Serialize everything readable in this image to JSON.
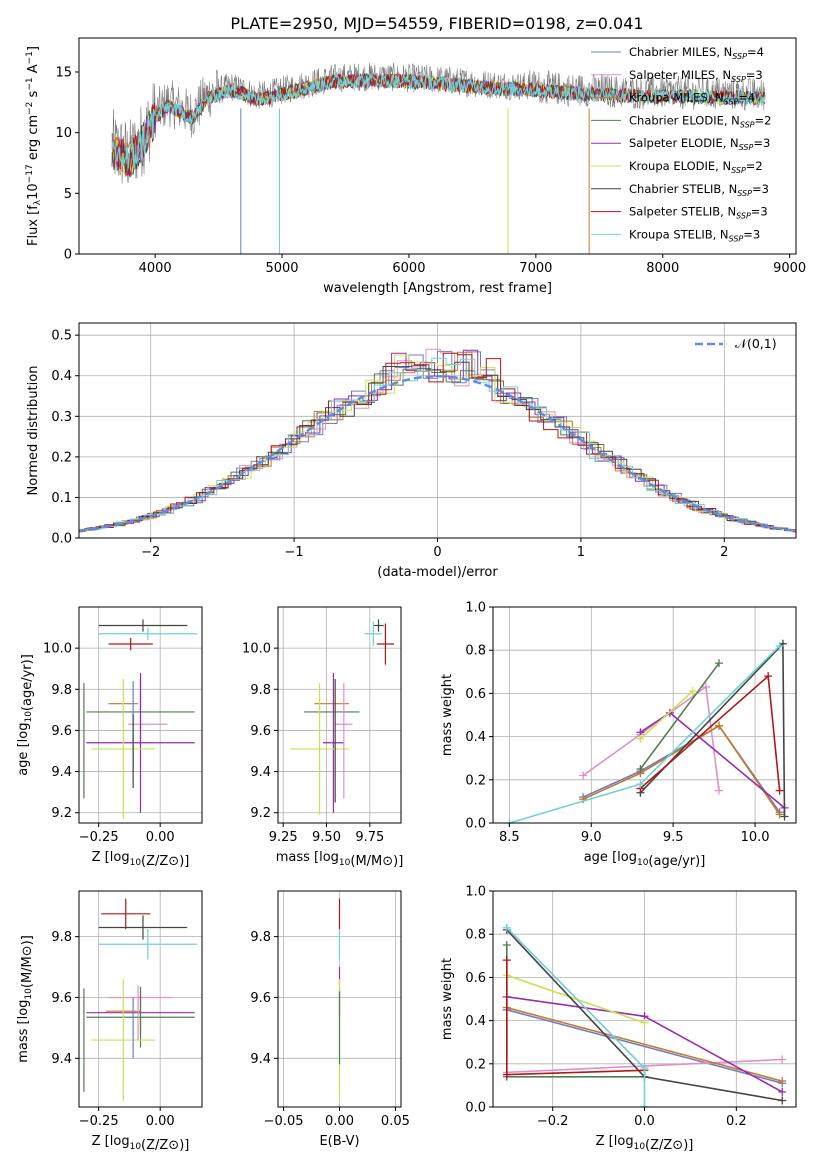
{
  "title": "PLATE=2950, MJD=54559, FIBERID=0198, z=0.041",
  "colors": {
    "Chabrier MILES": "#6b7fc8",
    "Salpeter MILES": "#e090c8",
    "Kroupa MILES": "#c87828",
    "Chabrier ELODIE": "#4f7f4f",
    "Salpeter ELODIE": "#9a2ab0",
    "Kroupa ELODIE": "#cce050",
    "Chabrier STELIB": "#444444",
    "Salpeter STELIB": "#b01818",
    "Kroupa STELIB": "#70d0d8"
  },
  "chart_data": [
    {
      "id": "spectrum",
      "type": "line",
      "xlabel": "wavelength [Angstrom, rest frame]",
      "ylabel": "Flux [f",
      "ylabel_parts": [
        "Flux [f",
        "λ",
        "10",
        "−17",
        " erg cm",
        "−2",
        " s",
        "−1",
        " A",
        "−1",
        "]"
      ],
      "xlim": [
        3400,
        9050
      ],
      "ylim": [
        0,
        17.8
      ],
      "xticks": [
        4000,
        5000,
        6000,
        7000,
        8000,
        9000
      ],
      "yticks": [
        0,
        5,
        10,
        15
      ],
      "grid": false,
      "legend_position": "upper-right",
      "legend": [
        {
          "label": "Chabrier MILES, N",
          "sub": "SSP",
          "suffix": "=4",
          "key": "Chabrier MILES"
        },
        {
          "label": "Salpeter MILES, N",
          "sub": "SSP",
          "suffix": "=3",
          "key": "Salpeter MILES"
        },
        {
          "label": "Kroupa MILES, N",
          "sub": "SSP",
          "suffix": "=4",
          "key": "Kroupa MILES"
        },
        {
          "label": "Chabrier ELODIE, N",
          "sub": "SSP",
          "suffix": "=2",
          "key": "Chabrier ELODIE"
        },
        {
          "label": "Salpeter ELODIE, N",
          "sub": "SSP",
          "suffix": "=3",
          "key": "Salpeter ELODIE"
        },
        {
          "label": "Kroupa ELODIE, N",
          "sub": "SSP",
          "suffix": "=2",
          "key": "Kroupa ELODIE"
        },
        {
          "label": "Chabrier STELIB, N",
          "sub": "SSP",
          "suffix": "=3",
          "key": "Chabrier STELIB"
        },
        {
          "label": "Salpeter STELIB, N",
          "sub": "SSP",
          "suffix": "=3",
          "key": "Salpeter STELIB"
        },
        {
          "label": "Kroupa STELIB, N",
          "sub": "SSP",
          "suffix": "=3",
          "key": "Kroupa STELIB"
        }
      ],
      "continuum": {
        "x": [
          3650,
          3700,
          3800,
          3900,
          4000,
          4100,
          4200,
          4300,
          4400,
          4500,
          4600,
          4700,
          4800,
          4900,
          5000,
          5200,
          5400,
          5600,
          5800,
          6000,
          6200,
          6400,
          6600,
          6800,
          7000,
          7200,
          7400,
          7600,
          7800,
          8000,
          8200,
          8400,
          8600,
          8800
        ],
        "y": [
          9.0,
          8.5,
          8.0,
          9.5,
          11.5,
          12.5,
          12.0,
          11.5,
          13.0,
          13.5,
          13.8,
          13.5,
          13.0,
          13.2,
          13.5,
          14.0,
          14.5,
          14.6,
          14.6,
          14.5,
          14.4,
          14.2,
          14.0,
          13.9,
          13.8,
          13.6,
          13.5,
          13.4,
          13.3,
          13.3,
          13.3,
          13.2,
          13.2,
          13.1
        ]
      },
      "model_spikes": [
        {
          "x": 4675,
          "y": 0,
          "key": "Chabrier MILES"
        },
        {
          "x": 4980,
          "y": 0,
          "key": "Kroupa STELIB"
        },
        {
          "x": 6780,
          "y": 0,
          "key": "Kroupa ELODIE"
        },
        {
          "x": 7420,
          "y": 0,
          "key": "Kroupa MILES"
        }
      ]
    },
    {
      "id": "residuals",
      "type": "histogram",
      "xlabel": "(data-model)/error",
      "ylabel": "Normed distribution",
      "xlim": [
        -2.5,
        2.5
      ],
      "ylim": [
        0,
        0.53
      ],
      "xticks": [
        -2,
        -1,
        0,
        1,
        2
      ],
      "yticks": [
        0.0,
        0.1,
        0.2,
        0.3,
        0.4,
        0.5
      ],
      "grid": true,
      "legend_position": "upper-right",
      "reference_curve": {
        "label": "𝒩(0,1)",
        "type": "gaussian",
        "mean": 0,
        "sigma": 1,
        "color": "#5f8be0"
      }
    },
    {
      "id": "age-Z",
      "type": "errorbar",
      "xlabel": "Z [log10(Z/Z⊙)]",
      "ylabel": "age  [log10(age/yr)]",
      "xlim": [
        -0.33,
        0.17
      ],
      "ylim": [
        9.15,
        10.2
      ],
      "xticks": [
        -0.25,
        0.0
      ],
      "yticks": [
        9.2,
        9.4,
        9.6,
        9.8,
        10.0
      ],
      "grid": true,
      "points": [
        {
          "key": "Chabrier STELIB",
          "x": -0.07,
          "y": 10.11,
          "xerr": [
            0.18,
            0.18
          ],
          "yerr": [
            0.03,
            0.03
          ]
        },
        {
          "key": "Kroupa STELIB",
          "x": -0.05,
          "y": 10.07,
          "xerr": [
            0.2,
            0.2
          ],
          "yerr": [
            0.03,
            0.03
          ]
        },
        {
          "key": "Salpeter STELIB",
          "x": -0.12,
          "y": 10.02,
          "xerr": [
            0.09,
            0.09
          ],
          "yerr": [
            0.03,
            0.03
          ]
        },
        {
          "key": "Kroupa MILES",
          "x": -0.15,
          "y": 9.73,
          "xerr": [
            0.06,
            0.06
          ],
          "yerr": [
            0.0,
            0.0
          ]
        },
        {
          "key": "Chabrier ELODIE",
          "x": -0.08,
          "y": 9.69,
          "xerr": [
            0.22,
            0.22
          ],
          "yerr": [
            0.16,
            0.16
          ]
        },
        {
          "key": "Salpeter MILES",
          "x": -0.05,
          "y": 9.63,
          "xerr": [
            0.08,
            0.08
          ],
          "yerr": [
            0.0,
            0.0
          ]
        },
        {
          "key": "Salpeter ELODIE",
          "x": -0.08,
          "y": 9.54,
          "xerr": [
            0.22,
            0.22
          ],
          "yerr": [
            0.34,
            0.34
          ]
        },
        {
          "key": "Kroupa ELODIE",
          "x": -0.15,
          "y": 9.51,
          "xerr": [
            0.13,
            0.13
          ],
          "yerr": [
            0.34,
            0.34
          ]
        },
        {
          "key": "Chabrier MILES",
          "x": -0.11,
          "y": 9.62,
          "xerr": [
            0.0,
            0.0
          ],
          "yerr": [
            0.22,
            0.22
          ]
        },
        {
          "key": "Chabrier STELIB",
          "x": -0.11,
          "y": 9.5,
          "xerr": [
            0.0,
            0.0
          ],
          "yerr": [
            0.18,
            0.18
          ]
        },
        {
          "key": "Chabrier ELODIE",
          "x": -0.31,
          "y": 9.55,
          "xerr": [
            0.0,
            0.0
          ],
          "yerr": [
            0.28,
            0.28
          ]
        }
      ]
    },
    {
      "id": "age-mass",
      "type": "errorbar",
      "xlabel": "mass [log10(M/M⊙)]",
      "ylabel": "",
      "xlim": [
        9.22,
        9.93
      ],
      "ylim": [
        9.15,
        10.2
      ],
      "xticks": [
        9.25,
        9.5,
        9.75
      ],
      "yticks": [
        9.2,
        9.4,
        9.6,
        9.8,
        10.0
      ],
      "grid": true,
      "points": [
        {
          "key": "Chabrier STELIB",
          "x": 9.8,
          "y": 10.11,
          "xerr": [
            0.03,
            0.03
          ],
          "yerr": [
            0.03,
            0.03
          ]
        },
        {
          "key": "Kroupa STELIB",
          "x": 9.77,
          "y": 10.07,
          "xerr": [
            0.05,
            0.05
          ],
          "yerr": [
            0.06,
            0.06
          ]
        },
        {
          "key": "Salpeter STELIB",
          "x": 9.84,
          "y": 10.02,
          "xerr": [
            0.05,
            0.05
          ],
          "yerr": [
            0.1,
            0.1
          ]
        },
        {
          "key": "Kroupa MILES",
          "x": 9.53,
          "y": 9.73,
          "xerr": [
            0.1,
            0.1
          ],
          "yerr": [
            0.0,
            0.0
          ]
        },
        {
          "key": "Chabrier ELODIE",
          "x": 9.53,
          "y": 9.69,
          "xerr": [
            0.16,
            0.16
          ],
          "yerr": [
            0.0,
            0.0
          ]
        },
        {
          "key": "Salpeter MILES",
          "x": 9.6,
          "y": 9.63,
          "xerr": [
            0.05,
            0.05
          ],
          "yerr": [
            0.0,
            0.0
          ]
        },
        {
          "key": "Salpeter ELODIE",
          "x": 9.54,
          "y": 9.54,
          "xerr": [
            0.06,
            0.06
          ],
          "yerr": [
            0.34,
            0.34
          ]
        },
        {
          "key": "Kroupa ELODIE",
          "x": 9.46,
          "y": 9.51,
          "xerr": [
            0.17,
            0.17
          ],
          "yerr": [
            0.32,
            0.32
          ]
        },
        {
          "key": "Salpeter MILES",
          "x": 9.6,
          "y": 9.55,
          "xerr": [
            0.0,
            0.0
          ],
          "yerr": [
            0.28,
            0.28
          ]
        },
        {
          "key": "Chabrier STELIB",
          "x": 9.55,
          "y": 9.55,
          "xerr": [
            0.0,
            0.0
          ],
          "yerr": [
            0.3,
            0.3
          ]
        }
      ]
    },
    {
      "id": "weight-age",
      "type": "line",
      "xlabel": "age  [log10(age/yr)]",
      "ylabel": "mass weight",
      "xlim": [
        8.4,
        10.25
      ],
      "ylim": [
        0.0,
        1.0
      ],
      "xticks": [
        8.5,
        9.0,
        9.5,
        10.0
      ],
      "yticks": [
        0.0,
        0.2,
        0.4,
        0.6,
        0.8,
        1.0
      ],
      "grid": true,
      "series": [
        {
          "key": "Chabrier MILES",
          "x": [
            8.95,
            9.3,
            9.78,
            10.15
          ],
          "y": [
            0.12,
            0.24,
            0.45,
            0.05
          ]
        },
        {
          "key": "Salpeter MILES",
          "x": [
            8.95,
            9.3,
            9.7,
            9.78
          ],
          "y": [
            0.22,
            0.41,
            0.63,
            0.15
          ]
        },
        {
          "key": "Kroupa MILES",
          "x": [
            8.95,
            9.3,
            9.78,
            10.15
          ],
          "y": [
            0.11,
            0.23,
            0.45,
            0.04
          ]
        },
        {
          "key": "Chabrier ELODIE",
          "x": [
            9.3,
            9.78
          ],
          "y": [
            0.25,
            0.74
          ]
        },
        {
          "key": "Salpeter ELODIE",
          "x": [
            9.3,
            9.48,
            10.18
          ],
          "y": [
            0.42,
            0.51,
            0.07
          ]
        },
        {
          "key": "Kroupa ELODIE",
          "x": [
            9.3,
            9.62
          ],
          "y": [
            0.39,
            0.61
          ]
        },
        {
          "key": "Chabrier STELIB",
          "x": [
            9.3,
            10.17,
            10.18
          ],
          "y": [
            0.14,
            0.83,
            0.03
          ]
        },
        {
          "key": "Salpeter STELIB",
          "x": [
            9.3,
            10.08,
            10.15
          ],
          "y": [
            0.16,
            0.68,
            0.15
          ]
        },
        {
          "key": "Kroupa STELIB",
          "x": [
            8.5,
            9.3,
            10.15
          ],
          "y": [
            0.0,
            0.18,
            0.82
          ]
        }
      ]
    },
    {
      "id": "mass-Z",
      "type": "errorbar",
      "xlabel": "Z [log10(Z/Z⊙)]",
      "ylabel": "mass [log10(M/M⊙)]",
      "xlim": [
        -0.33,
        0.17
      ],
      "ylim": [
        9.24,
        9.95
      ],
      "xticks": [
        -0.25,
        0.0
      ],
      "yticks": [
        9.4,
        9.6,
        9.8
      ],
      "grid": true,
      "points": [
        {
          "key": "Salpeter STELIB",
          "x": -0.14,
          "y": 9.875,
          "xerr": [
            0.1,
            0.1
          ],
          "yerr": [
            0.05,
            0.05
          ]
        },
        {
          "key": "Chabrier STELIB",
          "x": -0.07,
          "y": 9.83,
          "xerr": [
            0.18,
            0.18
          ],
          "yerr": [
            0.04,
            0.04
          ]
        },
        {
          "key": "Kroupa STELIB",
          "x": -0.05,
          "y": 9.775,
          "xerr": [
            0.2,
            0.2
          ],
          "yerr": [
            0.05,
            0.05
          ]
        },
        {
          "key": "Salpeter MILES",
          "x": -0.08,
          "y": 9.6,
          "xerr": [
            0.13,
            0.13
          ],
          "yerr": [
            0.0,
            0.0
          ]
        },
        {
          "key": "Kroupa MILES",
          "x": -0.15,
          "y": 9.555,
          "xerr": [
            0.07,
            0.07
          ],
          "yerr": [
            0.0,
            0.0
          ]
        },
        {
          "key": "Salpeter ELODIE",
          "x": -0.08,
          "y": 9.55,
          "xerr": [
            0.22,
            0.22
          ],
          "yerr": [
            0.07,
            0.07
          ]
        },
        {
          "key": "Chabrier ELODIE",
          "x": -0.08,
          "y": 9.535,
          "xerr": [
            0.22,
            0.22
          ],
          "yerr": [
            0.1,
            0.1
          ]
        },
        {
          "key": "Kroupa ELODIE",
          "x": -0.15,
          "y": 9.46,
          "xerr": [
            0.13,
            0.13
          ],
          "yerr": [
            0.2,
            0.2
          ]
        },
        {
          "key": "Chabrier MILES",
          "x": -0.11,
          "y": 9.5,
          "xerr": [
            0.0,
            0.0
          ],
          "yerr": [
            0.1,
            0.1
          ]
        },
        {
          "key": "Salpeter MILES",
          "x": -0.09,
          "y": 9.55,
          "xerr": [
            0.0,
            0.0
          ],
          "yerr": [
            0.09,
            0.09
          ]
        },
        {
          "key": "Chabrier ELODIE",
          "x": -0.31,
          "y": 9.46,
          "xerr": [
            0.0,
            0.0
          ],
          "yerr": [
            0.17,
            0.17
          ]
        }
      ]
    },
    {
      "id": "mass-EBV",
      "type": "errorbar",
      "xlabel": "E(B-V)",
      "ylabel": "",
      "xlim": [
        -0.055,
        0.055
      ],
      "ylim": [
        9.24,
        9.95
      ],
      "xticks": [
        -0.05,
        0.0,
        0.05
      ],
      "yticks": [
        9.4,
        9.6,
        9.8
      ],
      "grid": true,
      "points": [
        {
          "key": "Salpeter STELIB",
          "x": 0.0,
          "y": 9.875,
          "xerr": [
            0.0,
            0.0
          ],
          "yerr": [
            0.05,
            0.05
          ]
        },
        {
          "key": "Kroupa STELIB",
          "x": 0.0,
          "y": 9.775,
          "xerr": [
            0.0,
            0.0
          ],
          "yerr": [
            0.05,
            0.05
          ]
        },
        {
          "key": "Salpeter ELODIE",
          "x": 0.0,
          "y": 9.62,
          "xerr": [
            0.0,
            0.0
          ],
          "yerr": [
            0.08,
            0.08
          ]
        },
        {
          "key": "Kroupa ELODIE",
          "x": 0.0,
          "y": 9.46,
          "xerr": [
            0.0,
            0.0
          ],
          "yerr": [
            0.2,
            0.2
          ]
        },
        {
          "key": "Chabrier ELODIE",
          "x": 0.0,
          "y": 9.5,
          "xerr": [
            0.0,
            0.0
          ],
          "yerr": [
            0.12,
            0.12
          ]
        }
      ]
    },
    {
      "id": "weight-Z",
      "type": "line",
      "xlabel": "Z [log10(Z/Z⊙)]",
      "ylabel": "mass weight",
      "xlim": [
        -0.33,
        0.33
      ],
      "ylim": [
        0.0,
        1.0
      ],
      "xticks": [
        -0.2,
        0.0,
        0.2
      ],
      "yticks": [
        0.0,
        0.2,
        0.4,
        0.6,
        0.8,
        1.0
      ],
      "grid": true,
      "series": [
        {
          "key": "Chabrier MILES",
          "x": [
            -0.3,
            0.3
          ],
          "y": [
            0.45,
            0.11
          ]
        },
        {
          "key": "Salpeter MILES",
          "x": [
            -0.3,
            0.3
          ],
          "y": [
            0.16,
            0.22
          ]
        },
        {
          "key": "Kroupa MILES",
          "x": [
            -0.3,
            0.3
          ],
          "y": [
            0.46,
            0.12
          ]
        },
        {
          "key": "Chabrier ELODIE",
          "x": [
            -0.3,
            -0.3,
            0.0
          ],
          "y": [
            0.75,
            0.14,
            0.14
          ]
        },
        {
          "key": "Salpeter ELODIE",
          "x": [
            -0.3,
            0.0,
            0.3
          ],
          "y": [
            0.51,
            0.42,
            0.07
          ]
        },
        {
          "key": "Kroupa ELODIE",
          "x": [
            -0.3,
            0.0
          ],
          "y": [
            0.61,
            0.39
          ]
        },
        {
          "key": "Chabrier STELIB",
          "x": [
            -0.3,
            0.0,
            0.3
          ],
          "y": [
            0.82,
            0.14,
            0.03
          ]
        },
        {
          "key": "Salpeter STELIB",
          "x": [
            -0.3,
            -0.3,
            0.0
          ],
          "y": [
            0.68,
            0.15,
            0.17
          ]
        },
        {
          "key": "Kroupa STELIB",
          "x": [
            -0.3,
            0.0,
            0.0
          ],
          "y": [
            0.83,
            0.18,
            0.0
          ]
        }
      ]
    }
  ]
}
